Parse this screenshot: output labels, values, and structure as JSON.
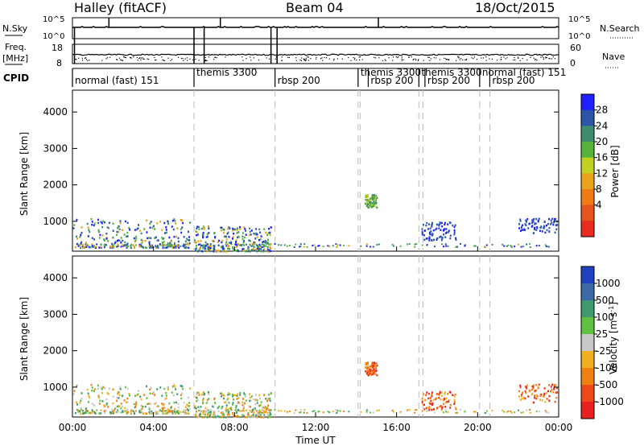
{
  "header": {
    "station": "Halley (fitACF)",
    "beam": "Beam 04",
    "date": "18/Oct/2015"
  },
  "top_panels": {
    "nsky_label": "N.Sky",
    "nsky_ticks": [
      "10^5",
      "10^0"
    ],
    "nsky_right_ticks": [
      "10^5",
      "10^0"
    ],
    "nsearch_label": "N.Search",
    "freq_label": "Freq.",
    "freq_unit": "[MHz]",
    "freq_ticks": [
      "18",
      "8"
    ],
    "nave_label": "Nave",
    "nave_ticks": [
      "60",
      "0"
    ],
    "cpid_label": "CPID"
  },
  "cpid_segments": [
    {
      "start": 0.0,
      "end": 6.0,
      "label": "normal (fast) 151"
    },
    {
      "start": 6.0,
      "end": 10.0,
      "label": "themis 3300"
    },
    {
      "start": 10.0,
      "end": 14.1,
      "label": "rbsp 200"
    },
    {
      "start": 14.1,
      "end": 14.6,
      "label": "themis 3300"
    },
    {
      "start": 14.6,
      "end": 17.1,
      "label": "rbsp 200"
    },
    {
      "start": 17.1,
      "end": 17.4,
      "label": "themis 3300"
    },
    {
      "start": 17.4,
      "end": 20.1,
      "label": "rbsp 200"
    },
    {
      "start": 20.1,
      "end": 20.6,
      "label": "normal (fast) 151"
    },
    {
      "start": 20.6,
      "end": 24.0,
      "label": "rbsp 200"
    }
  ],
  "chart_data": [
    {
      "type": "heatmap",
      "title": "Power",
      "xlabel": "Time UT",
      "ylabel": "Slant Range [km]",
      "xlim": [
        0,
        24
      ],
      "ylim": [
        180,
        4600
      ],
      "x_ticks": [
        "00:00",
        "04:00",
        "08:00",
        "12:00",
        "16:00",
        "20:00",
        "00:00"
      ],
      "y_ticks": [
        1000,
        2000,
        3000,
        4000
      ],
      "colorbar": {
        "label": "Power [dB]",
        "ticks": [
          "4",
          "8",
          "12",
          "16",
          "20",
          "24",
          "28"
        ],
        "colors": [
          "#1f1fff",
          "#2b55a8",
          "#3f8c6e",
          "#55b33c",
          "#c2d11f",
          "#e8a31a",
          "#f07a14",
          "#e6531c",
          "#e82a1f"
        ]
      },
      "scatter_regions": [
        {
          "t0": 0.0,
          "t1": 5.8,
          "r0": 300,
          "r1": 1100,
          "value": "mixed"
        },
        {
          "t0": 6.0,
          "t1": 9.8,
          "r0": 200,
          "r1": 900,
          "value": "mixed"
        },
        {
          "t0": 14.4,
          "t1": 15.0,
          "r0": 1400,
          "r1": 1750,
          "value": "high"
        },
        {
          "t0": 17.2,
          "t1": 18.9,
          "r0": 500,
          "r1": 1000,
          "value": "low"
        },
        {
          "t0": 22.0,
          "t1": 24.0,
          "r0": 700,
          "r1": 1100,
          "value": "low"
        }
      ]
    },
    {
      "type": "heatmap",
      "title": "Velocity",
      "xlabel": "Time UT",
      "ylabel": "Slant Range [km]",
      "xlim": [
        0,
        24
      ],
      "ylim": [
        180,
        4600
      ],
      "x_ticks": [
        "00:00",
        "04:00",
        "08:00",
        "12:00",
        "16:00",
        "20:00",
        "00:00"
      ],
      "y_ticks": [
        1000,
        2000,
        3000,
        4000
      ],
      "colorbar": {
        "label": "Velocity [m s^-1]",
        "ticks": [
          "1000",
          "500",
          "100",
          "25",
          "-25",
          "-100",
          "-500",
          "-1000"
        ],
        "colors": [
          "#2040c0",
          "#3c6aa8",
          "#3e9a6e",
          "#60c040",
          "#c8c8c8",
          "#f0b020",
          "#f08010",
          "#ee4818",
          "#e82020"
        ]
      },
      "scatter_regions": [
        {
          "t0": 0.0,
          "t1": 5.8,
          "r0": 300,
          "r1": 1100,
          "value": "mixed"
        },
        {
          "t0": 6.0,
          "t1": 9.8,
          "r0": 200,
          "r1": 900,
          "value": "mixed"
        },
        {
          "t0": 14.4,
          "t1": 15.0,
          "r0": 1350,
          "r1": 1700,
          "value": "negative"
        },
        {
          "t0": 17.2,
          "t1": 18.9,
          "r0": 400,
          "r1": 900,
          "value": "negative"
        },
        {
          "t0": 22.0,
          "t1": 24.0,
          "r0": 600,
          "r1": 1100,
          "value": "negative"
        }
      ]
    }
  ]
}
